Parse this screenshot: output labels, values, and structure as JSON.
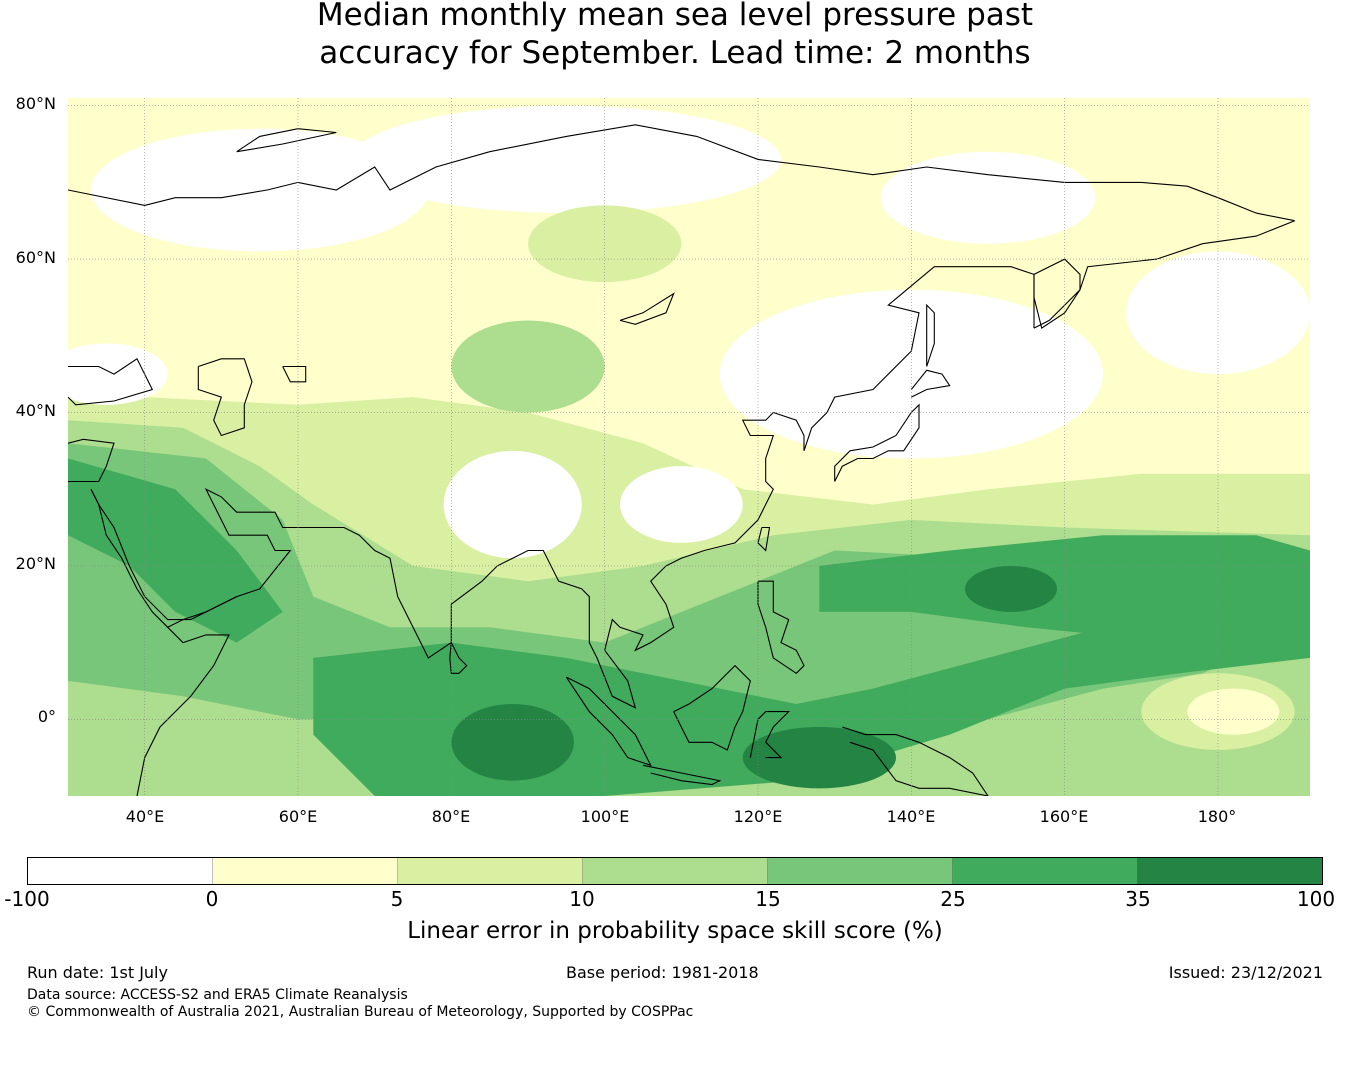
{
  "title": {
    "line1": "Median monthly mean sea level pressure past",
    "line2": "accuracy for September. Lead time: 2 months"
  },
  "map": {
    "lat_labels": [
      "80°N",
      "60°N",
      "40°N",
      "20°N",
      "0°"
    ],
    "lon_labels": [
      "40°E",
      "60°E",
      "80°E",
      "100°E",
      "120°E",
      "140°E",
      "160°E",
      "180°"
    ],
    "lat_range": [
      -10,
      81
    ],
    "lon_range": [
      30,
      192
    ],
    "gridlines": true
  },
  "colorbar": {
    "ticks": [
      "-100",
      "0",
      "5",
      "10",
      "15",
      "25",
      "35",
      "100"
    ],
    "colors": [
      "#ffffff",
      "#ffffcc",
      "#d9f0a3",
      "#addd8e",
      "#78c679",
      "#41ab5d",
      "#238443"
    ],
    "label": "Linear error in probability space skill score (%)"
  },
  "footer": {
    "run_date": "Run date: 1st July",
    "base_period": "Base period: 1981-2018",
    "issued": "Issued: 23/12/2021",
    "data_source": "Data source: ACCESS-S2 and ERA5 Climate Reanalysis",
    "copyright": "© Commonwealth of Australia 2021, Australian Bureau of Meteorology, Supported by COSPPac"
  }
}
